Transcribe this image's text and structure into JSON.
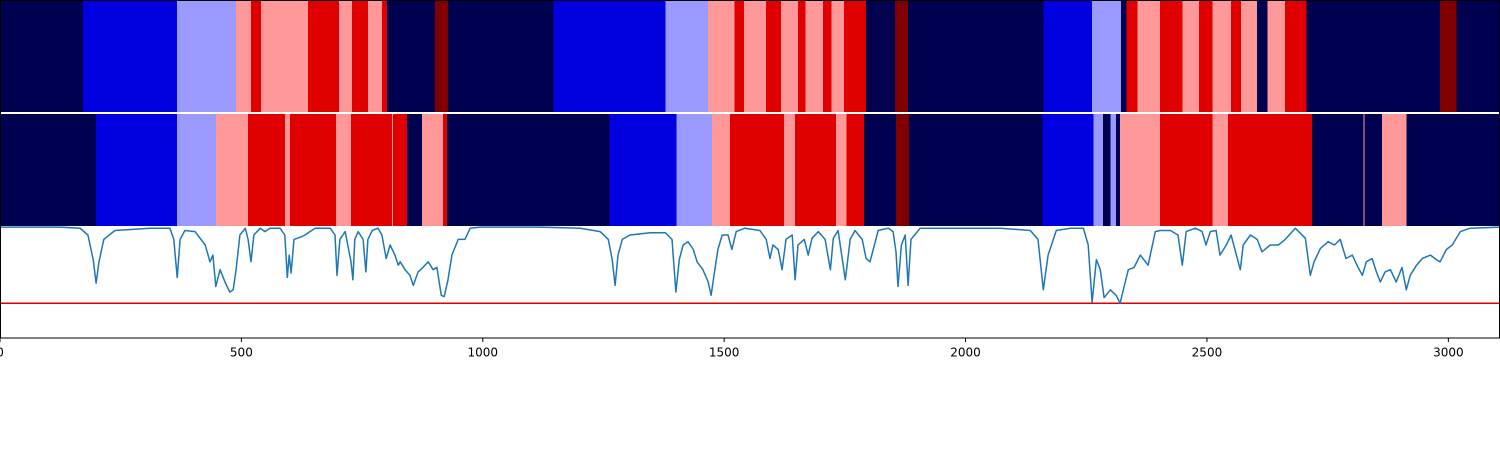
{
  "chart_data": {
    "type": "segmentation",
    "state_colors": [
      "#000050",
      "#0000e0",
      "#9999ff",
      "#ff9999",
      "#e00000",
      "#800000"
    ],
    "rows": [
      {
        "bins": [
          0,
          172,
          367,
          489,
          520,
          541,
          638,
          702,
          729,
          762,
          791,
          802,
          901,
          928,
          1146,
          1378,
          1467,
          1521,
          1541,
          1587,
          1618,
          1653,
          1668,
          1705,
          1722,
          1748,
          1794,
          1854,
          1881,
          2161,
          2262,
          2322,
          2333,
          2356,
          2403,
          2449,
          2484,
          2511,
          2550,
          2571,
          2604,
          2625,
          2662,
          2706,
          2983,
          3017,
          3107
        ],
        "values": [
          0,
          1,
          2,
          3,
          4,
          3,
          4,
          3,
          4,
          3,
          4,
          0,
          5,
          0,
          1,
          2,
          3,
          4,
          3,
          4,
          3,
          4,
          3,
          4,
          3,
          4,
          0,
          5,
          0,
          1,
          2,
          0,
          4,
          3,
          4,
          3,
          4,
          3,
          4,
          3,
          0,
          3,
          4,
          0,
          5,
          0
        ]
      },
      {
        "bins": [
          0,
          199,
          367,
          447,
          514,
          590,
          601,
          696,
          727,
          812,
          814,
          843,
          874,
          918,
          926,
          1262,
          1401,
          1475,
          1512,
          1624,
          1647,
          1732,
          1753,
          1790,
          1856,
          1883,
          2159,
          2265,
          2285,
          2300,
          2312,
          2320,
          2403,
          2511,
          2544,
          2718,
          2824,
          2826,
          2863,
          2913,
          3107
        ],
        "values": [
          0,
          1,
          2,
          3,
          4,
          3,
          4,
          3,
          4,
          3,
          4,
          0,
          3,
          4,
          0,
          1,
          2,
          3,
          4,
          3,
          4,
          3,
          4,
          0,
          5,
          0,
          1,
          2,
          0,
          2,
          0,
          3,
          4,
          3,
          4,
          0,
          3,
          0,
          3,
          0
        ]
      }
    ],
    "line": {
      "color": "#1f77b4",
      "x": [
        0,
        124,
        166,
        182,
        193,
        199,
        205,
        215,
        238,
        311,
        352,
        360,
        367,
        373,
        383,
        404,
        425,
        435,
        441,
        447,
        456,
        466,
        476,
        483,
        489,
        497,
        508,
        514,
        520,
        526,
        539,
        549,
        559,
        580,
        590,
        595,
        599,
        603,
        609,
        622,
        632,
        642,
        653,
        684,
        694,
        698,
        704,
        715,
        727,
        731,
        735,
        742,
        752,
        758,
        762,
        771,
        783,
        791,
        800,
        808,
        818,
        825,
        829,
        839,
        849,
        856,
        866,
        876,
        887,
        897,
        905,
        914,
        920,
        928,
        936,
        949,
        963,
        974,
        994,
        1119,
        1202,
        1243,
        1260,
        1268,
        1274,
        1280,
        1289,
        1305,
        1347,
        1378,
        1392,
        1400,
        1407,
        1415,
        1425,
        1436,
        1444,
        1456,
        1467,
        1473,
        1479,
        1487,
        1496,
        1508,
        1516,
        1525,
        1543,
        1574,
        1587,
        1595,
        1601,
        1612,
        1620,
        1628,
        1641,
        1647,
        1653,
        1666,
        1674,
        1682,
        1695,
        1709,
        1720,
        1726,
        1736,
        1751,
        1761,
        1771,
        1786,
        1794,
        1802,
        1819,
        1840,
        1850,
        1856,
        1860,
        1867,
        1875,
        1881,
        1887,
        1906,
        2072,
        2134,
        2150,
        2161,
        2171,
        2188,
        2217,
        2244,
        2254,
        2262,
        2271,
        2279,
        2287,
        2300,
        2312,
        2320,
        2329,
        2337,
        2349,
        2362,
        2378,
        2393,
        2403,
        2424,
        2440,
        2449,
        2457,
        2476,
        2490,
        2498,
        2507,
        2519,
        2527,
        2540,
        2550,
        2561,
        2569,
        2575,
        2590,
        2604,
        2614,
        2631,
        2648,
        2662,
        2683,
        2704,
        2714,
        2722,
        2735,
        2751,
        2764,
        2776,
        2788,
        2801,
        2813,
        2822,
        2830,
        2842,
        2851,
        2859,
        2869,
        2880,
        2892,
        2904,
        2913,
        2921,
        2934,
        2946,
        2963,
        2975,
        2983,
        2996,
        3008,
        3025,
        3045,
        3107
      ],
      "values": [
        0.99,
        0.99,
        0.98,
        0.92,
        0.7,
        0.49,
        0.68,
        0.88,
        0.96,
        0.98,
        0.98,
        0.88,
        0.54,
        0.88,
        0.96,
        0.95,
        0.83,
        0.68,
        0.74,
        0.46,
        0.61,
        0.5,
        0.41,
        0.43,
        0.61,
        0.92,
        0.98,
        0.88,
        0.68,
        0.92,
        0.98,
        0.95,
        0.98,
        0.98,
        0.92,
        0.54,
        0.74,
        0.58,
        0.88,
        0.9,
        0.92,
        0.95,
        0.98,
        0.98,
        0.92,
        0.56,
        0.88,
        0.95,
        0.68,
        0.52,
        0.88,
        0.95,
        0.88,
        0.59,
        0.88,
        0.96,
        0.98,
        0.92,
        0.71,
        0.83,
        0.74,
        0.65,
        0.68,
        0.61,
        0.56,
        0.47,
        0.59,
        0.63,
        0.68,
        0.61,
        0.63,
        0.38,
        0.37,
        0.52,
        0.74,
        0.88,
        0.88,
        0.98,
        0.99,
        0.99,
        0.98,
        0.95,
        0.88,
        0.7,
        0.47,
        0.74,
        0.88,
        0.92,
        0.94,
        0.94,
        0.88,
        0.41,
        0.7,
        0.83,
        0.86,
        0.79,
        0.68,
        0.61,
        0.5,
        0.38,
        0.56,
        0.79,
        0.92,
        0.92,
        0.79,
        0.95,
        0.98,
        0.96,
        0.88,
        0.71,
        0.83,
        0.79,
        0.61,
        0.88,
        0.92,
        0.52,
        0.83,
        0.88,
        0.74,
        0.89,
        0.95,
        0.88,
        0.61,
        0.89,
        0.96,
        0.52,
        0.88,
        0.96,
        0.88,
        0.71,
        0.68,
        0.96,
        0.98,
        0.95,
        0.77,
        0.46,
        0.83,
        0.92,
        0.47,
        0.88,
        0.98,
        0.98,
        0.96,
        0.88,
        0.43,
        0.74,
        0.96,
        0.98,
        0.98,
        0.83,
        0.32,
        0.7,
        0.61,
        0.36,
        0.43,
        0.38,
        0.31,
        0.47,
        0.61,
        0.63,
        0.74,
        0.65,
        0.95,
        0.96,
        0.96,
        0.92,
        0.65,
        0.95,
        0.98,
        0.95,
        0.83,
        0.95,
        0.96,
        0.74,
        0.83,
        0.92,
        0.74,
        0.61,
        0.83,
        0.92,
        0.88,
        0.77,
        0.83,
        0.83,
        0.88,
        0.98,
        0.89,
        0.56,
        0.68,
        0.8,
        0.86,
        0.83,
        0.88,
        0.71,
        0.74,
        0.63,
        0.56,
        0.68,
        0.71,
        0.59,
        0.5,
        0.59,
        0.61,
        0.5,
        0.63,
        0.43,
        0.56,
        0.65,
        0.71,
        0.74,
        0.7,
        0.68,
        0.79,
        0.83,
        0.95,
        0.98,
        0.99
      ]
    },
    "hline": {
      "value": 0.31,
      "color": "#e00000"
    },
    "xlim": [
      0,
      3107
    ],
    "ylim": [
      0,
      1
    ],
    "xticks": [
      0,
      500,
      1000,
      1500,
      2000,
      2500,
      3000
    ]
  }
}
